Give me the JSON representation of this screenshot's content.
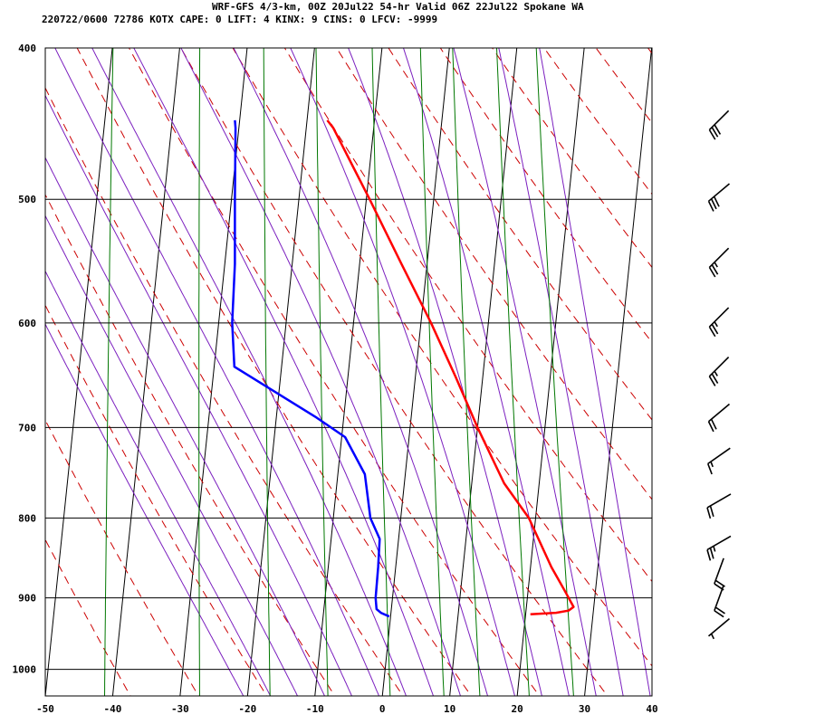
{
  "header": {
    "line1": "WRF-GFS 4/3-km, 00Z 20Jul22 54-hr Valid 06Z 22Jul22 Spokane WA",
    "line2": "220722/0600 72786  KOTX    CAPE:     0 LIFT:     4 KINX:     9 CINS:     0 LFCV: -9999"
  },
  "colors": {
    "temperature": "#ff0000",
    "dewpoint": "#0000ff",
    "dry_adiabat": "#cc0000",
    "moist_adiabat": "#7b1fbf",
    "mixing_ratio": "#007700",
    "isotherm": "#000000",
    "isobar": "#000000"
  },
  "chart_data": {
    "type": "skew-t",
    "pressure_axis": {
      "ylim": [
        1040,
        400
      ],
      "scale": "log",
      "ticks": [
        400,
        500,
        600,
        700,
        800,
        900,
        1000
      ]
    },
    "temperature_axis": {
      "xlim": [
        -50,
        40
      ],
      "ticks": [
        -50,
        -40,
        -30,
        -20,
        -10,
        0,
        10,
        20,
        30,
        40
      ]
    },
    "grid": true,
    "series": [
      {
        "role": "temperature",
        "points": [
          [
            922,
            20.7
          ],
          [
            920,
            24.5
          ],
          [
            917,
            26.3
          ],
          [
            912,
            27.0
          ],
          [
            890,
            25.4
          ],
          [
            860,
            23.1
          ],
          [
            800,
            19.0
          ],
          [
            760,
            14.8
          ],
          [
            700,
            10.0
          ],
          [
            650,
            6.0
          ],
          [
            600,
            1.5
          ],
          [
            550,
            -3.8
          ],
          [
            500,
            -9.5
          ],
          [
            450,
            -16.0
          ],
          [
            445,
            -17.0
          ]
        ]
      },
      {
        "role": "dewpoint",
        "points": [
          [
            925,
            -0.2
          ],
          [
            920,
            -1.5
          ],
          [
            915,
            -2.2
          ],
          [
            900,
            -2.5
          ],
          [
            860,
            -2.6
          ],
          [
            825,
            -2.8
          ],
          [
            800,
            -4.5
          ],
          [
            750,
            -6.0
          ],
          [
            710,
            -9.5
          ],
          [
            690,
            -14.0
          ],
          [
            640,
            -27.0
          ],
          [
            600,
            -28.0
          ],
          [
            550,
            -28.5
          ],
          [
            500,
            -29.5
          ],
          [
            450,
            -30.5
          ],
          [
            445,
            -30.7
          ]
        ]
      }
    ],
    "wind_barbs": [
      {
        "pressure": 445,
        "direction": 225,
        "speed": 30
      },
      {
        "pressure": 495,
        "direction": 230,
        "speed": 30
      },
      {
        "pressure": 545,
        "direction": 225,
        "speed": 25
      },
      {
        "pressure": 595,
        "direction": 225,
        "speed": 25
      },
      {
        "pressure": 640,
        "direction": 225,
        "speed": 25
      },
      {
        "pressure": 685,
        "direction": 230,
        "speed": 20
      },
      {
        "pressure": 730,
        "direction": 235,
        "speed": 15
      },
      {
        "pressure": 780,
        "direction": 240,
        "speed": 20
      },
      {
        "pressure": 830,
        "direction": 240,
        "speed": 25
      },
      {
        "pressure": 865,
        "direction": 200,
        "speed": 20
      },
      {
        "pressure": 900,
        "direction": 200,
        "speed": 20
      },
      {
        "pressure": 940,
        "direction": 230,
        "speed": 5
      }
    ]
  }
}
